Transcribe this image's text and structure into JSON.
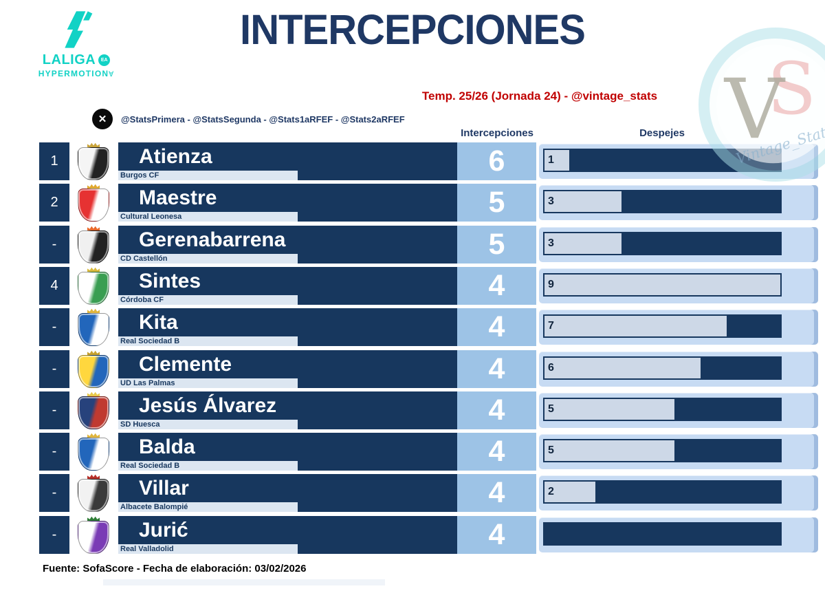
{
  "header": {
    "title": "INTERCEPCIONES",
    "subtitle": "Temp. 25/26 (Jornada 24) - @vintage_stats",
    "logo": {
      "brand": "LALIGA",
      "ea": "EA",
      "sub": "HYPERMOTION",
      "mark_glyph": "∀"
    },
    "social_handles": "@StatsPrimera - @StatsSegunda - @Stats1aRFEF - @Stats2aRFEF",
    "x_glyph": "✕"
  },
  "columns": {
    "interceptions": "Intercepciones",
    "clearances": "Despejes"
  },
  "watermark": {
    "monogram_v": "V",
    "monogram_s": "S",
    "label": "Vintage_Stats"
  },
  "footer": {
    "source": "Fuente: SofaScore - Fecha de elaboración: 03/02/2026"
  },
  "colors": {
    "navy": "#17375e",
    "title_navy": "#1f3864",
    "interceptions_cell": "#9dc3e6",
    "panel_blue": "#c7dbf3",
    "club_strip": "#dce6f1",
    "bar_fill_light": "#cdd8e7",
    "subtitle_red": "#c00000",
    "brand_teal": "#12d2c5"
  },
  "bar_axis_max": 9,
  "table": {
    "rows": [
      {
        "rank": "1",
        "player": "Atienza",
        "club": "Burgos CF",
        "interceptions": "6",
        "clearances": 1,
        "clearances_label": "1",
        "crest": {
          "c1": "#f5f5f5",
          "c2": "#222222",
          "c3": "#caa53c"
        }
      },
      {
        "rank": "2",
        "player": "Maestre",
        "club": "Cultural Leonesa",
        "interceptions": "5",
        "clearances": 3,
        "clearances_label": "3",
        "crest": {
          "c1": "#e63232",
          "c2": "#ffffff",
          "c3": "#e0a82e"
        }
      },
      {
        "rank": "-",
        "player": "Gerenabarrena",
        "club": "CD Castellón",
        "interceptions": "5",
        "clearances": 3,
        "clearances_label": "3",
        "crest": {
          "c1": "#f0f0f0",
          "c2": "#222222",
          "c3": "#e8682a"
        }
      },
      {
        "rank": "4",
        "player": "Sintes",
        "club": "Córdoba CF",
        "interceptions": "4",
        "clearances": 9,
        "clearances_label": "9",
        "crest": {
          "c1": "#ffffff",
          "c2": "#3a9e52",
          "c3": "#d8b93c"
        }
      },
      {
        "rank": "-",
        "player": "Kita",
        "club": "Real Sociedad B",
        "interceptions": "4",
        "clearances": 7,
        "clearances_label": "7",
        "crest": {
          "c1": "#2266bb",
          "c2": "#ffffff",
          "c3": "#e0b53c"
        }
      },
      {
        "rank": "-",
        "player": "Clemente",
        "club": "UD Las Palmas",
        "interceptions": "4",
        "clearances": 6,
        "clearances_label": "6",
        "crest": {
          "c1": "#ffd73e",
          "c2": "#2266bb",
          "c3": "#c8a22e"
        }
      },
      {
        "rank": "-",
        "player": "Jesús Álvarez",
        "club": "SD Huesca",
        "interceptions": "4",
        "clearances": 5,
        "clearances_label": "5",
        "crest": {
          "c1": "#27427c",
          "c2": "#c03a30",
          "c3": "#e8c94a"
        }
      },
      {
        "rank": "-",
        "player": "Balda",
        "club": "Real Sociedad B",
        "interceptions": "4",
        "clearances": 5,
        "clearances_label": "5",
        "crest": {
          "c1": "#2266bb",
          "c2": "#ffffff",
          "c3": "#e0b53c"
        }
      },
      {
        "rank": "-",
        "player": "Villar",
        "club": "Albacete Balompié",
        "interceptions": "4",
        "clearances": 2,
        "clearances_label": "2",
        "crest": {
          "c1": "#f2f2f2",
          "c2": "#3a3a3a",
          "c3": "#b8302a"
        }
      },
      {
        "rank": "-",
        "player": "Jurić",
        "club": "Real Valladolid",
        "interceptions": "4",
        "clearances": 0,
        "clearances_label": "",
        "crest": {
          "c1": "#ffffff",
          "c2": "#7a3cb5",
          "c3": "#2f7d36"
        }
      }
    ]
  },
  "chart_data": {
    "type": "bar",
    "title": "INTERCEPCIONES",
    "subtitle": "Temp. 25/26 (Jornada 24) - @vintage_stats",
    "categories": [
      "Atienza",
      "Maestre",
      "Gerenabarrena",
      "Sintes",
      "Kita",
      "Clemente",
      "Jesús Álvarez",
      "Balda",
      "Villar",
      "Jurić"
    ],
    "clubs": [
      "Burgos CF",
      "Cultural Leonesa",
      "CD Castellón",
      "Córdoba CF",
      "Real Sociedad B",
      "UD Las Palmas",
      "SD Huesca",
      "Real Sociedad B",
      "Albacete Balompié",
      "Real Valladolid"
    ],
    "ranks": [
      "1",
      "2",
      "-",
      "4",
      "-",
      "-",
      "-",
      "-",
      "-",
      "-"
    ],
    "series": [
      {
        "name": "Intercepciones",
        "values": [
          6,
          5,
          5,
          4,
          4,
          4,
          4,
          4,
          4,
          4
        ]
      },
      {
        "name": "Despejes",
        "values": [
          1,
          3,
          3,
          9,
          7,
          6,
          5,
          5,
          2,
          0
        ]
      }
    ],
    "bar_axis_range": [
      0,
      9
    ],
    "grid": false,
    "legend_position": "column-headers",
    "source": "Fuente: SofaScore - Fecha de elaboración: 03/02/2026"
  }
}
